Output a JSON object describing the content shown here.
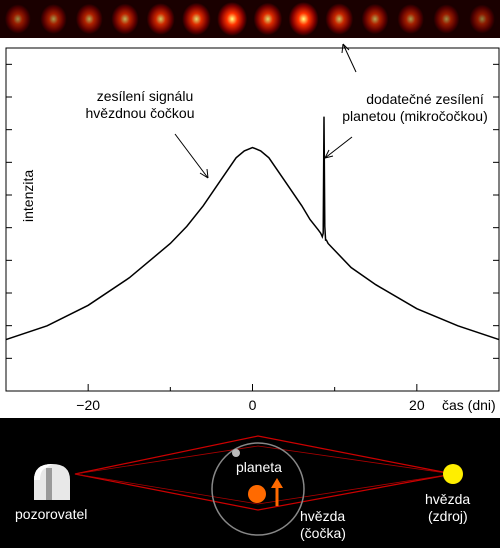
{
  "chart_data": {
    "type": "line",
    "title": "",
    "xlabel": "čas (dni)",
    "ylabel": "intenzita",
    "xlim": [
      -30,
      30
    ],
    "xticks": [
      -20,
      0,
      20
    ],
    "xtick_labels": [
      "−20",
      "0",
      "20"
    ],
    "grid": false,
    "series": [
      {
        "x": [
          -30,
          -25,
          -20,
          -15,
          -10,
          -8,
          -6,
          -4,
          -2,
          -1,
          0,
          1,
          2,
          4,
          6,
          7,
          8,
          8.3,
          8.5,
          8.6,
          8.7,
          8.8,
          8.9,
          9.0,
          9.2,
          10,
          12,
          15,
          20,
          25,
          30
        ],
        "y": [
          0.15,
          0.19,
          0.25,
          0.33,
          0.43,
          0.48,
          0.54,
          0.61,
          0.68,
          0.7,
          0.71,
          0.7,
          0.68,
          0.61,
          0.54,
          0.5,
          0.47,
          0.46,
          0.45,
          0.46,
          0.8,
          0.48,
          0.44,
          0.44,
          0.43,
          0.41,
          0.36,
          0.31,
          0.24,
          0.19,
          0.15
        ]
      }
    ],
    "annotations": [
      {
        "line1": "zesílení signálu",
        "line2": "hvězdnou čočkou"
      },
      {
        "line1": "dodatečné zesílení",
        "line2": "planetou (mikročočkou)"
      }
    ]
  },
  "scene": {
    "observer_label": "pozorovatel",
    "planet_label": "planeta",
    "lens_label_1": "hvězda",
    "lens_label_2": "(čočka)",
    "source_label_1": "hvězda",
    "source_label_2": "(zdroj)"
  },
  "strip": {
    "brightness": [
      0.55,
      0.6,
      0.65,
      0.7,
      0.78,
      0.85,
      1.0,
      0.85,
      1.0,
      0.75,
      0.65,
      0.6,
      0.55,
      0.5
    ]
  },
  "colors": {
    "lens_star": "#ff6a00",
    "source_star": "#ffee00",
    "ray": "#cc0000",
    "orbit": "#888888"
  }
}
